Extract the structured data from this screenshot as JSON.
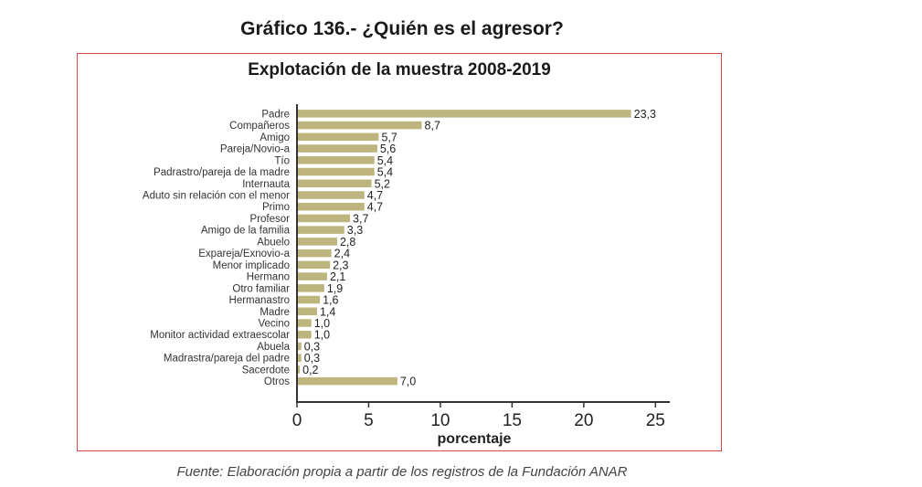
{
  "page": {
    "title": "Gráfico 136.- ¿Quién es el agresor?",
    "source": "Fuente: Elaboración propia a partir de los registros de la Fundación ANAR"
  },
  "chart_data": {
    "type": "bar",
    "orientation": "horizontal",
    "title": "Explotación de la muestra 2008-2019",
    "xlabel": "porcentaje",
    "ylabel": "",
    "xlim": [
      0,
      26
    ],
    "xticks": [
      0,
      5,
      10,
      15,
      20,
      25
    ],
    "grid": false,
    "bar_color": "#bdb57d",
    "frame_color": "#d94848",
    "categories": [
      "Padre",
      "Compañeros",
      "Amigo",
      "Pareja/Novio-a",
      "Tío",
      "Padrastro/pareja de la madre",
      "Internauta",
      "Aduto sin relación con el menor",
      "Primo",
      "Profesor",
      "Amigo de la familia",
      "Abuelo",
      "Expareja/Exnovio-a",
      "Menor implicado",
      "Hermano",
      "Otro familiar",
      "Hermanastro",
      "Madre",
      "Vecino",
      "Monitor actividad extraescolar",
      "Abuela",
      "Madrastra/pareja del padre",
      "Sacerdote",
      "Otros"
    ],
    "values": [
      23.3,
      8.7,
      5.7,
      5.6,
      5.4,
      5.4,
      5.2,
      4.7,
      4.7,
      3.7,
      3.3,
      2.8,
      2.4,
      2.3,
      2.1,
      1.9,
      1.6,
      1.4,
      1.0,
      1.0,
      0.3,
      0.3,
      0.2,
      7.0
    ],
    "value_labels": [
      "23,3",
      "8,7",
      "5,7",
      "5,6",
      "5,4",
      "5,4",
      "5,2",
      "4,7",
      "4,7",
      "3,7",
      "3,3",
      "2,8",
      "2,4",
      "2,3",
      "2,1",
      "1,9",
      "1,6",
      "1,4",
      "1,0",
      "1,0",
      "0,3",
      "0,3",
      "0,2",
      "7,0"
    ]
  }
}
